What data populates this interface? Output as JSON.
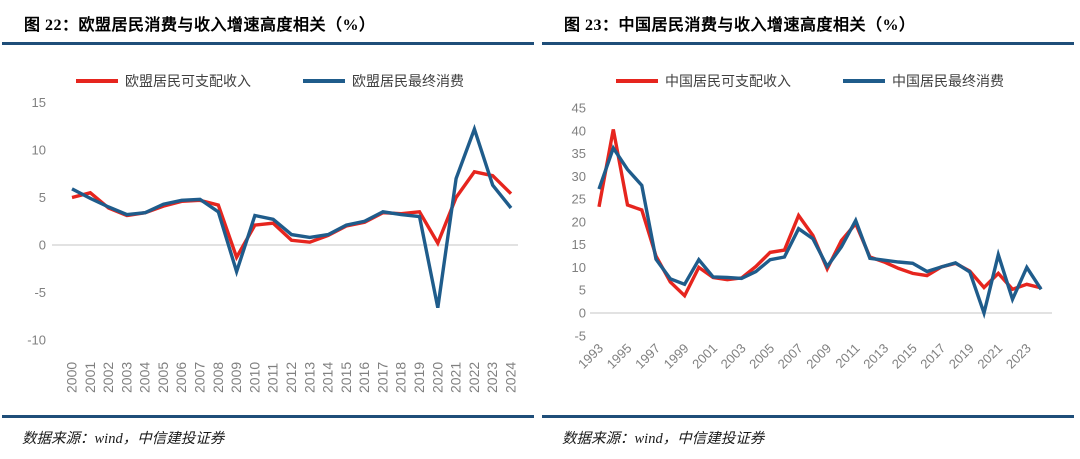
{
  "page": {
    "background": "#FFFFFF",
    "rule_color": "#1F4E79",
    "tick_color": "#808080",
    "gridline_color": "#D9D9D9"
  },
  "chart_data": [
    {
      "type": "line",
      "title": "图 22：欧盟居民消费与收入增速高度相关（%）",
      "source": "数据来源：wind，中信建投证券",
      "x": [
        2000,
        2001,
        2002,
        2003,
        2004,
        2005,
        2006,
        2007,
        2008,
        2009,
        2010,
        2011,
        2012,
        2013,
        2014,
        2015,
        2016,
        2017,
        2018,
        2019,
        2020,
        2021,
        2022,
        2023,
        2024
      ],
      "xticks": [
        2000,
        2001,
        2002,
        2003,
        2004,
        2005,
        2006,
        2007,
        2008,
        2009,
        2010,
        2011,
        2012,
        2013,
        2014,
        2015,
        2016,
        2017,
        2018,
        2019,
        2020,
        2021,
        2022,
        2023,
        2024
      ],
      "yticks": [
        15,
        10,
        5,
        0,
        -5,
        -10
      ],
      "ylim": [
        -10,
        15
      ],
      "grid": "zero-line-only",
      "legend_position": "top-center",
      "series": [
        {
          "name": "欧盟居民可支配收入",
          "color": "#E6251E",
          "values": [
            5.0,
            5.5,
            3.9,
            3.1,
            3.4,
            4.1,
            4.6,
            4.7,
            4.2,
            -1.3,
            2.1,
            2.3,
            0.5,
            0.3,
            1.0,
            2.0,
            2.4,
            3.4,
            3.3,
            3.5,
            0.2,
            5.0,
            7.7,
            7.3,
            5.4
          ]
        },
        {
          "name": "欧盟居民最终消费",
          "color": "#1F5C8B",
          "values": [
            5.9,
            4.9,
            4.0,
            3.2,
            3.4,
            4.3,
            4.7,
            4.8,
            3.5,
            -2.8,
            3.1,
            2.7,
            1.1,
            0.8,
            1.1,
            2.1,
            2.5,
            3.5,
            3.2,
            3.0,
            -6.6,
            7.0,
            12.2,
            6.3,
            3.9
          ]
        }
      ]
    },
    {
      "type": "line",
      "title": "图 23：中国居民消费与收入增速高度相关（%）",
      "source": "数据来源：wind，中信建投证券",
      "x": [
        1993,
        1994,
        1995,
        1996,
        1997,
        1998,
        1999,
        2000,
        2001,
        2002,
        2003,
        2004,
        2005,
        2006,
        2007,
        2008,
        2009,
        2010,
        2011,
        2012,
        2013,
        2014,
        2015,
        2016,
        2017,
        2018,
        2019,
        2020,
        2021,
        2022,
        2023,
        2024
      ],
      "xticks": [
        1993,
        1995,
        1997,
        1999,
        2001,
        2003,
        2005,
        2007,
        2009,
        2011,
        2013,
        2015,
        2017,
        2019,
        2021,
        2023
      ],
      "yticks": [
        45,
        40,
        35,
        30,
        25,
        20,
        15,
        10,
        5,
        0,
        -5
      ],
      "ylim": [
        -5,
        45
      ],
      "grid": "zero-line-only",
      "legend_position": "top-center",
      "series": [
        {
          "name": "中国居民可支配收入",
          "color": "#E6251E",
          "values": [
            23.3,
            40.3,
            23.7,
            22.6,
            12.5,
            6.8,
            3.8,
            10.0,
            7.8,
            7.3,
            7.7,
            10.2,
            13.3,
            13.8,
            21.4,
            17.0,
            9.7,
            15.9,
            19.6,
            12.3,
            11.2,
            9.8,
            8.7,
            8.2,
            10.1,
            10.9,
            9.2,
            5.6,
            8.7,
            5.2,
            6.3,
            5.5
          ]
        },
        {
          "name": "中国居民最终消费",
          "color": "#1F5C8B",
          "values": [
            27.2,
            36.2,
            31.5,
            28.0,
            11.8,
            7.5,
            6.3,
            11.7,
            7.9,
            7.8,
            7.6,
            9.1,
            11.7,
            12.3,
            18.5,
            16.3,
            10.2,
            14.5,
            20.3,
            12.0,
            11.6,
            11.2,
            10.9,
            9.1,
            10.1,
            11.0,
            9.0,
            0.0,
            12.8,
            3.0,
            10.0,
            5.2
          ]
        }
      ]
    }
  ]
}
